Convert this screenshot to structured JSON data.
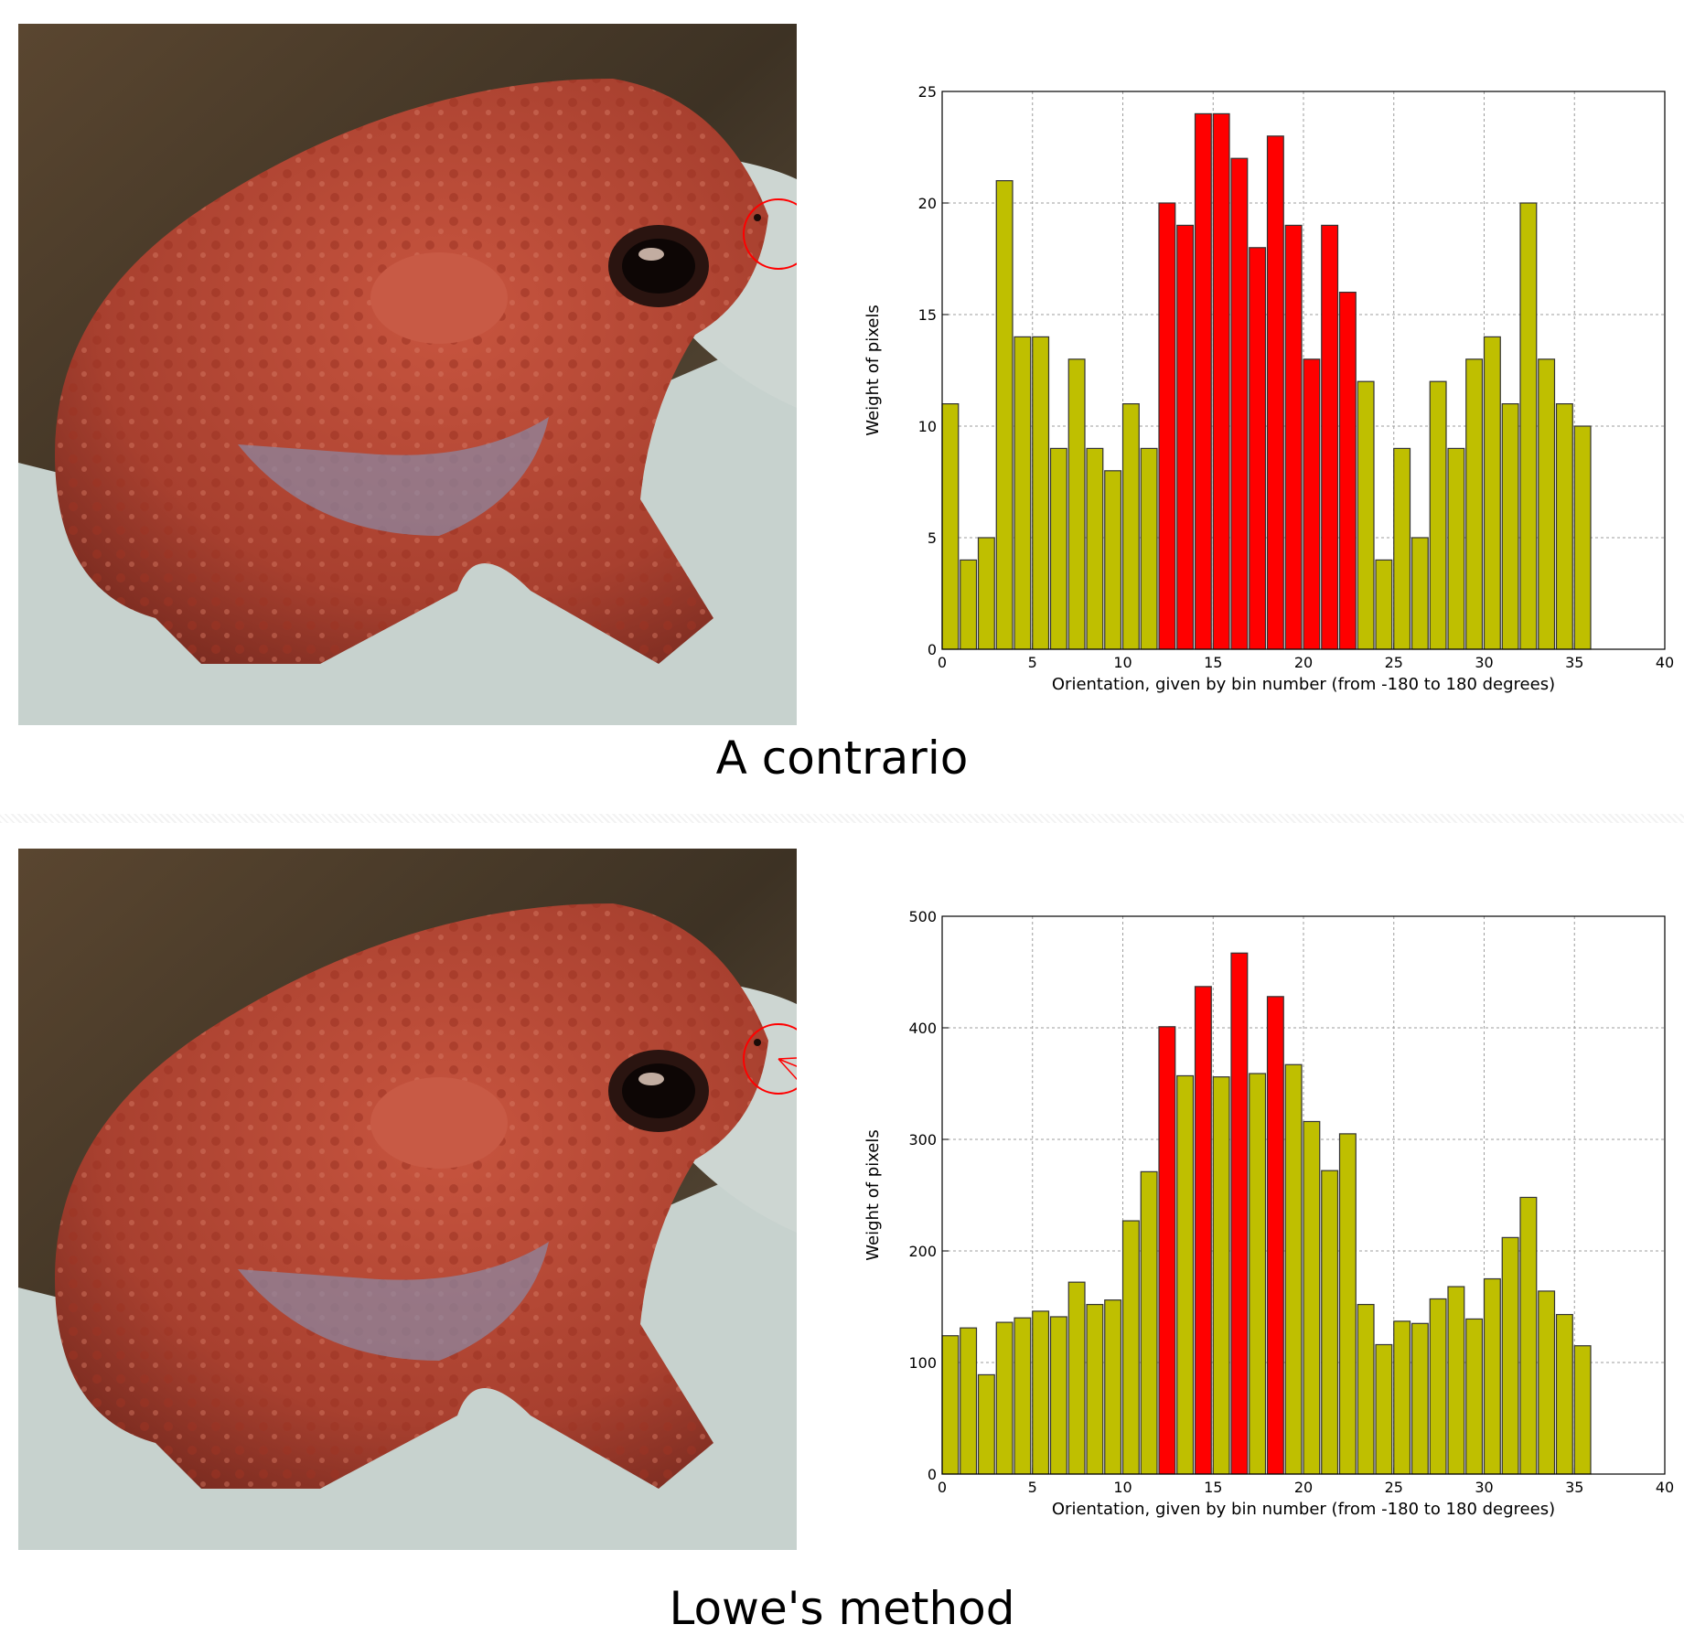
{
  "captions": {
    "top": "A contrario",
    "bottom": "Lowe's method"
  },
  "colors": {
    "highlight": "#ff0000",
    "normal": "#bfbf00",
    "edge": "#333333",
    "grid": "#9e9e9e",
    "toad_body": "#b5493a",
    "rock": "#c9d3cf",
    "background_dark": "#4a3b2a"
  },
  "chart_data": [
    {
      "type": "bar",
      "title": "",
      "xlabel": "Orientation, given by bin number (from -180 to 180 degrees)",
      "ylabel": "Weight of pixels",
      "xlim": [
        0,
        40
      ],
      "ylim": [
        0,
        25
      ],
      "xticks": [
        0,
        5,
        10,
        15,
        20,
        25,
        30,
        35,
        40
      ],
      "yticks": [
        0,
        5,
        10,
        15,
        20,
        25
      ],
      "grid": true,
      "bins": [
        0,
        1,
        2,
        3,
        4,
        5,
        6,
        7,
        8,
        9,
        10,
        11,
        12,
        13,
        14,
        15,
        16,
        17,
        18,
        19,
        20,
        21,
        22,
        23,
        24,
        25,
        26,
        27,
        28,
        29,
        30,
        31,
        32,
        33,
        34,
        35
      ],
      "values": [
        11,
        4,
        5,
        21,
        14,
        14,
        9,
        13,
        9,
        8,
        11,
        9,
        20,
        19,
        24,
        24,
        22,
        18,
        23,
        19,
        13,
        19,
        16,
        12,
        4,
        9,
        5,
        12,
        9,
        13,
        14,
        11,
        20,
        13,
        11,
        10
      ],
      "highlighted_bins": [
        12,
        13,
        14,
        15,
        16,
        17,
        18,
        19,
        20,
        21,
        22
      ]
    },
    {
      "type": "bar",
      "title": "",
      "xlabel": "Orientation, given by bin number (from -180 to 180 degrees)",
      "ylabel": "Weight of pixels",
      "xlim": [
        0,
        40
      ],
      "ylim": [
        0,
        500
      ],
      "xticks": [
        0,
        5,
        10,
        15,
        20,
        25,
        30,
        35,
        40
      ],
      "yticks": [
        0,
        100,
        200,
        300,
        400,
        500
      ],
      "grid": true,
      "bins": [
        0,
        1,
        2,
        3,
        4,
        5,
        6,
        7,
        8,
        9,
        10,
        11,
        12,
        13,
        14,
        15,
        16,
        17,
        18,
        19,
        20,
        21,
        22,
        23,
        24,
        25,
        26,
        27,
        28,
        29,
        30,
        31,
        32,
        33,
        34,
        35
      ],
      "values": [
        124,
        131,
        89,
        136,
        140,
        146,
        141,
        172,
        152,
        156,
        227,
        271,
        401,
        357,
        437,
        356,
        467,
        359,
        428,
        367,
        316,
        272,
        305,
        152,
        116,
        137,
        135,
        157,
        168,
        139,
        175,
        212,
        248,
        164,
        143,
        115
      ],
      "highlighted_bins": [
        12,
        14,
        16,
        18
      ]
    }
  ]
}
